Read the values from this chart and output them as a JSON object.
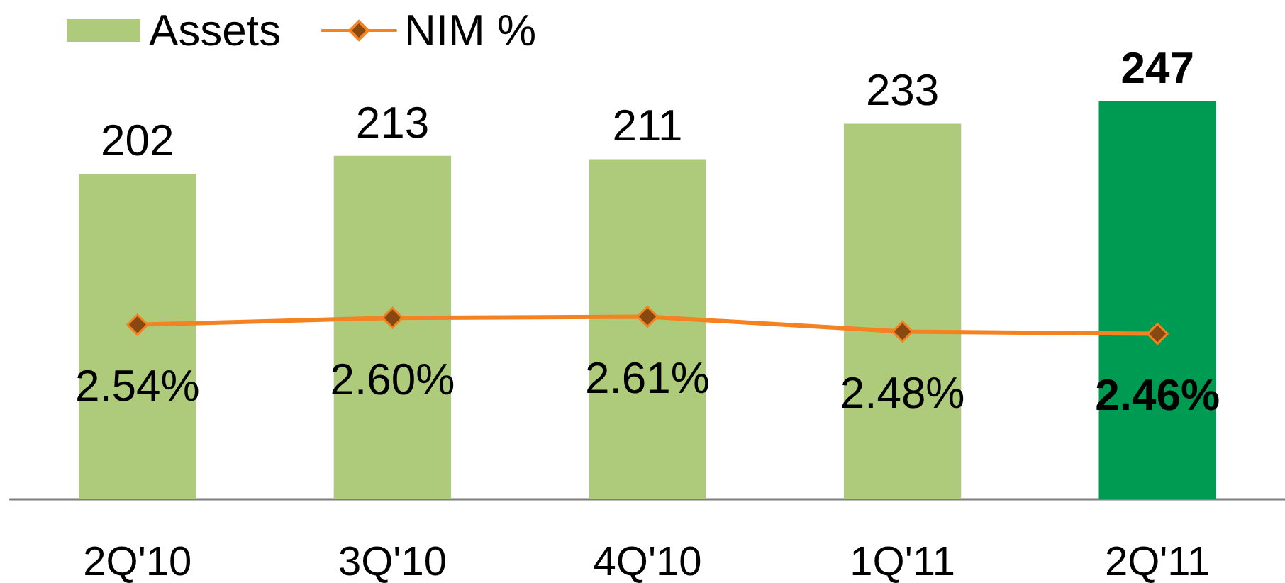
{
  "chart_data": {
    "type": "bar",
    "categories": [
      "2Q'10",
      "3Q'10",
      "4Q'10",
      "1Q'11",
      "2Q'11"
    ],
    "series": [
      {
        "name": "Assets",
        "color": "#adcb7a",
        "colors": [
          "#adcb7a",
          "#adcb7a",
          "#adcb7a",
          "#adcb7a",
          "#009b52"
        ],
        "values": [
          202,
          213,
          211,
          233,
          247
        ],
        "value_labels": [
          "202",
          "213",
          "211",
          "233",
          "247"
        ]
      },
      {
        "name": "NIM %",
        "type": "line",
        "axis": "y2",
        "color": "#f58220",
        "values": [
          2.54,
          2.6,
          2.61,
          2.48,
          2.46
        ],
        "value_labels": [
          "2.54%",
          "2.60%",
          "2.61%",
          "2.48%",
          "2.46%"
        ]
      }
    ],
    "tick_labels": "x",
    "legend": "top left",
    "marker": "diamond",
    "line_style": "solid",
    "grid": false
  }
}
